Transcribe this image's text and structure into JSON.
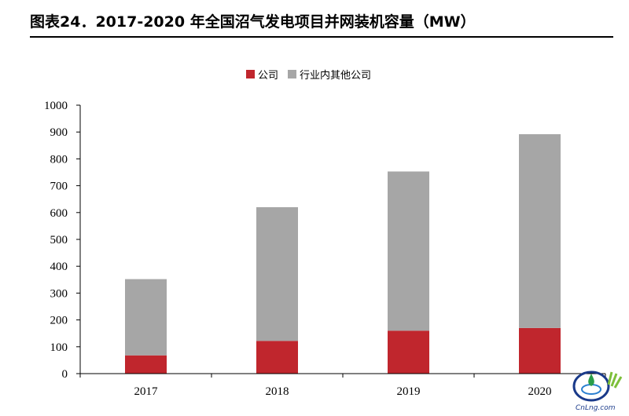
{
  "page_title": "图表24．2017-2020 年全国沼气发电项目并网装机容量（MW）",
  "colors": {
    "company": "#c0262d",
    "others": "#a6a6a6",
    "axis": "#000000"
  },
  "logo": {
    "text": "CnLng.com",
    "icon": "water-drop-logo-icon"
  },
  "chart_data": {
    "type": "bar",
    "stacked": true,
    "categories": [
      "2017",
      "2018",
      "2019",
      "2020"
    ],
    "series": [
      {
        "name": "公司",
        "values": [
          68,
          122,
          160,
          170
        ]
      },
      {
        "name": "行业内其他公司",
        "values": [
          284,
          498,
          593,
          722
        ]
      }
    ],
    "ylim": [
      0,
      1000
    ],
    "yticks": [
      "0",
      "100",
      "200",
      "300",
      "400",
      "500",
      "600",
      "700",
      "800",
      "900",
      "1000"
    ],
    "legend_position": "top-center",
    "grid": false
  }
}
